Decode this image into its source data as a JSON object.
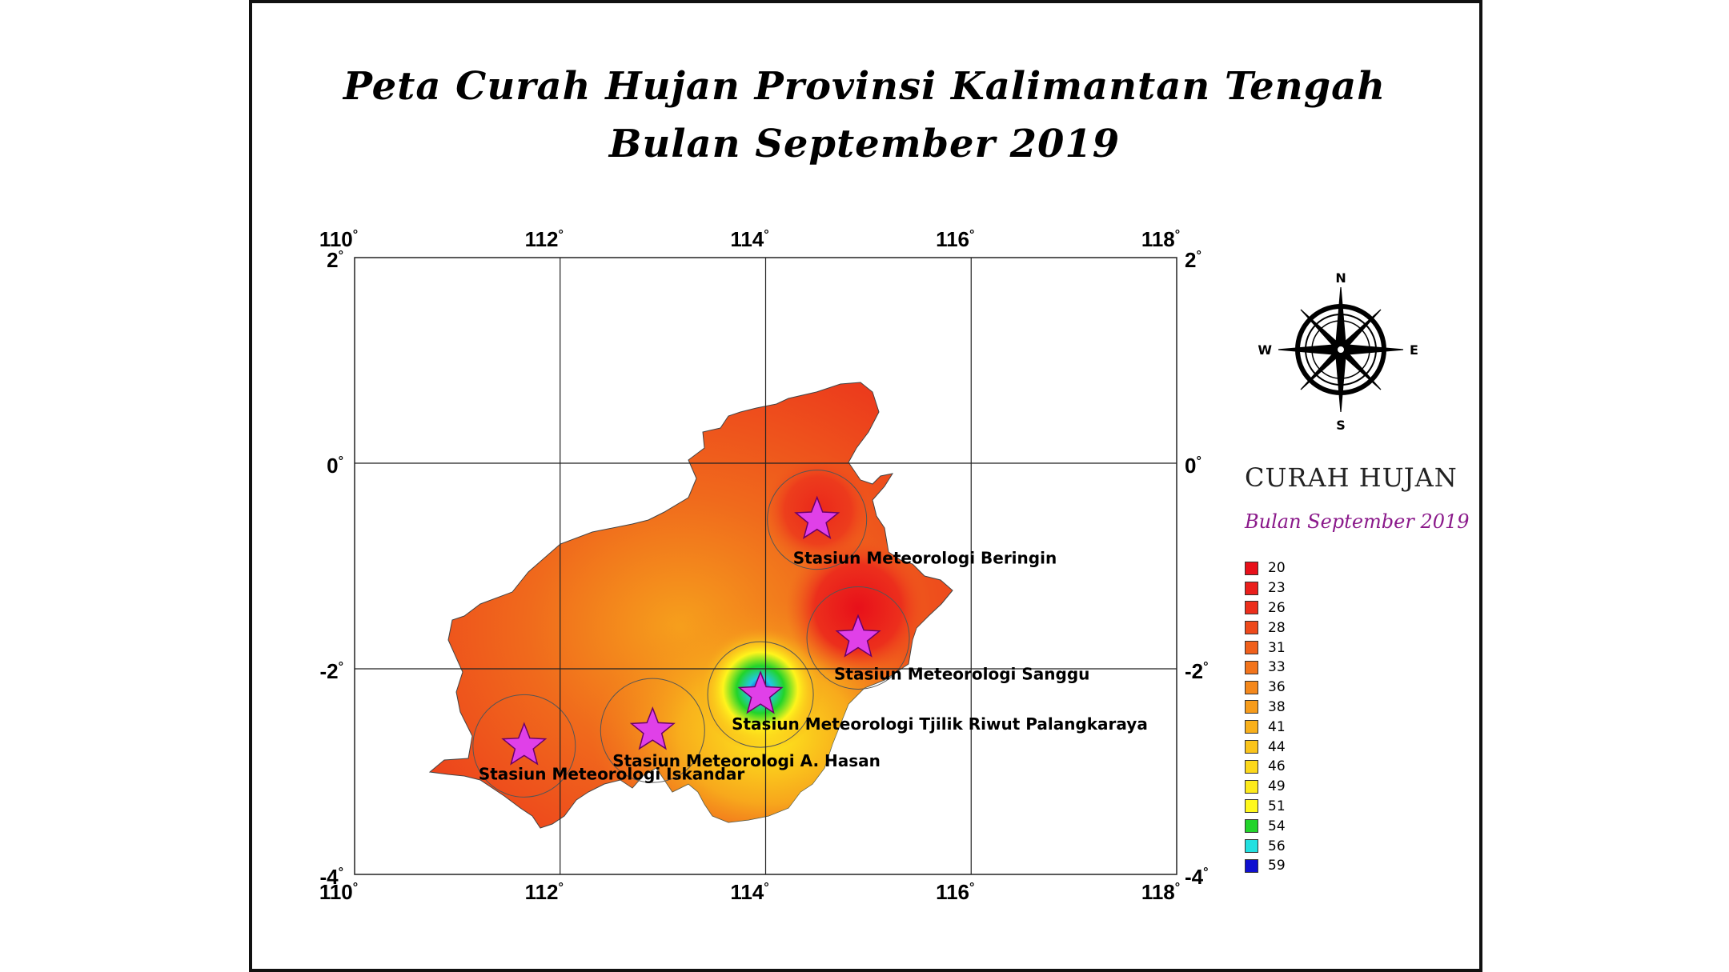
{
  "title": {
    "line1": "Peta Curah Hujan Provinsi Kalimantan Tengah",
    "line2": "Bulan September 2019"
  },
  "map": {
    "lon_ticks": [
      "110",
      "112",
      "114",
      "116",
      "118"
    ],
    "lat_ticks": [
      "2",
      "0",
      "-2",
      "-4"
    ],
    "degree_symbol": "°"
  },
  "compass": {
    "n": "N",
    "e": "E",
    "s": "S",
    "w": "W"
  },
  "stations": [
    {
      "label": "Stasiun Meteorologi Beringin",
      "lon": 114.5,
      "lat": -0.55
    },
    {
      "label": "Stasiun Meteorologi Sanggu",
      "lon": 114.9,
      "lat": -1.7
    },
    {
      "label": "Stasiun Meteorologi  Tjilik Riwut Palangkaraya",
      "lon": 113.95,
      "lat": -2.25
    },
    {
      "label": "Stasiun Meteorologi A. Hasan",
      "lon": 112.9,
      "lat": -2.6
    },
    {
      "label": "Stasiun Meteorologi Iskandar",
      "lon": 111.65,
      "lat": -2.75
    }
  ],
  "legend": {
    "title": "CURAH HUJAN",
    "subtitle": "Bulan September 2019",
    "items": [
      {
        "value": "20",
        "color": "#e8101a"
      },
      {
        "value": "23",
        "color": "#ea1f1c"
      },
      {
        "value": "26",
        "color": "#ec2f1c"
      },
      {
        "value": "28",
        "color": "#ee4a1c"
      },
      {
        "value": "31",
        "color": "#f0601c"
      },
      {
        "value": "33",
        "color": "#f2741c"
      },
      {
        "value": "36",
        "color": "#f4881c"
      },
      {
        "value": "38",
        "color": "#f69c1c"
      },
      {
        "value": "41",
        "color": "#f8b01c"
      },
      {
        "value": "44",
        "color": "#fac41c"
      },
      {
        "value": "46",
        "color": "#fcd81c"
      },
      {
        "value": "49",
        "color": "#fdea1c"
      },
      {
        "value": "51",
        "color": "#fff81c"
      },
      {
        "value": "54",
        "color": "#22d42a"
      },
      {
        "value": "56",
        "color": "#22e0e0"
      },
      {
        "value": "59",
        "color": "#1010d0"
      }
    ]
  }
}
